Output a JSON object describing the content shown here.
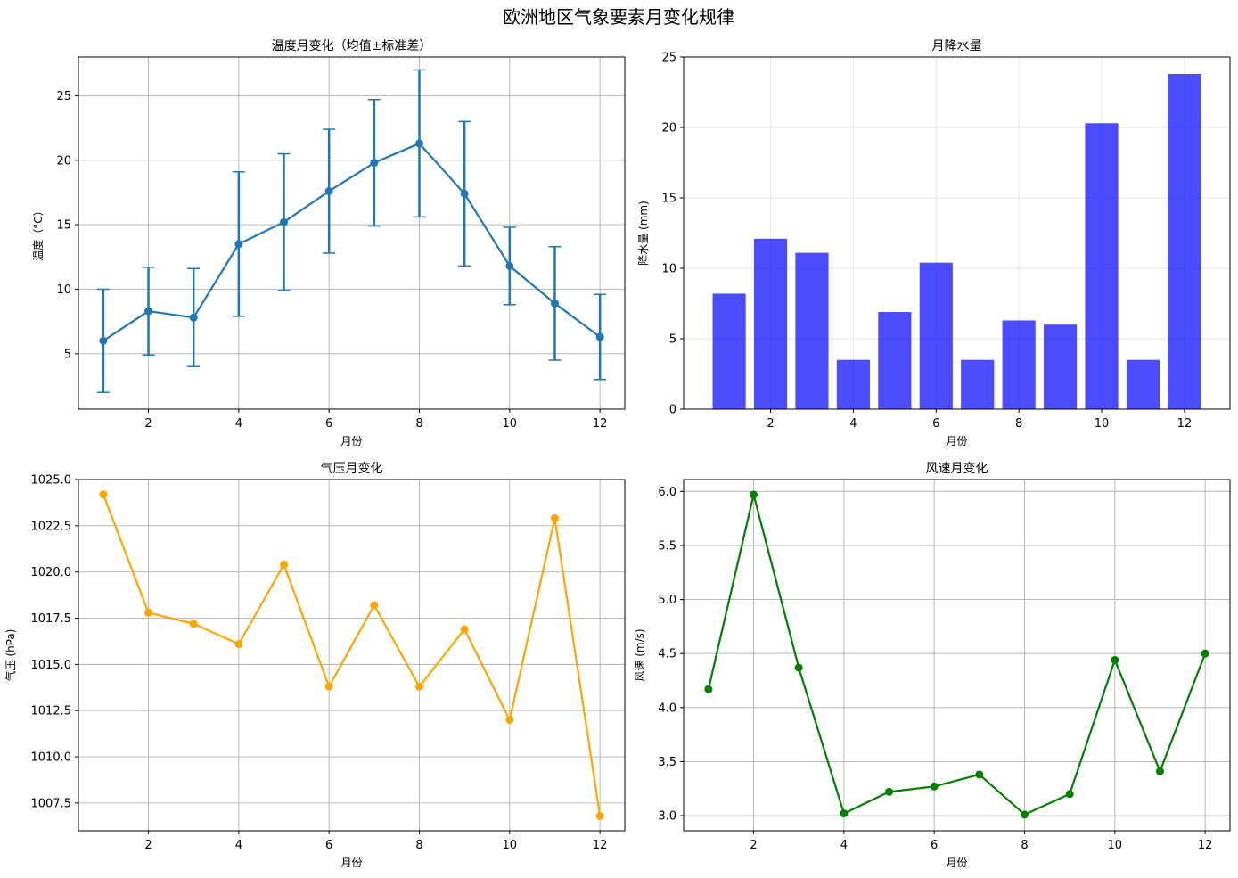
{
  "figure": {
    "title": "欧洲地区气象要素月变化规律"
  },
  "chart_data": [
    {
      "type": "line",
      "title": "温度月变化（均值±标准差）",
      "xlabel": "月份",
      "ylabel": "温度（°C）",
      "x": [
        1,
        2,
        3,
        4,
        5,
        6,
        7,
        8,
        9,
        10,
        11,
        12
      ],
      "y": [
        6.0,
        8.3,
        7.8,
        13.5,
        15.2,
        17.6,
        19.8,
        21.3,
        17.4,
        11.8,
        8.9,
        6.3
      ],
      "error": [
        4.0,
        3.4,
        3.8,
        5.6,
        5.3,
        4.8,
        4.9,
        5.7,
        5.6,
        3.0,
        4.4,
        3.3
      ],
      "xlim": [
        0.45,
        12.55
      ],
      "ylim": [
        0.7,
        28.0
      ],
      "xticks": [
        2,
        4,
        6,
        8,
        10,
        12
      ],
      "yticks": [
        5,
        10,
        15,
        20,
        25
      ],
      "grid": true,
      "color": "#1f77b4"
    },
    {
      "type": "bar",
      "title": "月降水量",
      "xlabel": "月份",
      "ylabel": "降水量 (mm)",
      "x": [
        1,
        2,
        3,
        4,
        5,
        6,
        7,
        8,
        9,
        10,
        11,
        12
      ],
      "y": [
        8.2,
        12.1,
        11.1,
        3.5,
        6.9,
        10.4,
        3.5,
        6.3,
        6.0,
        20.3,
        3.5,
        23.8
      ],
      "xlim": [
        -0.1,
        13.1
      ],
      "ylim": [
        0,
        25
      ],
      "xticks": [
        2,
        4,
        6,
        8,
        10,
        12
      ],
      "yticks": [
        0,
        5,
        10,
        15,
        20,
        25
      ],
      "grid": true,
      "color": "#0000ff"
    },
    {
      "type": "line",
      "title": "气压月变化",
      "xlabel": "月份",
      "ylabel": "气压 (hPa)",
      "x": [
        1,
        2,
        3,
        4,
        5,
        6,
        7,
        8,
        9,
        10,
        11,
        12
      ],
      "y": [
        1024.2,
        1017.8,
        1017.2,
        1016.1,
        1020.4,
        1013.8,
        1018.2,
        1013.8,
        1016.9,
        1012.0,
        1022.9,
        1006.8
      ],
      "xlim": [
        0.45,
        12.55
      ],
      "ylim": [
        1006.0,
        1025.0
      ],
      "xticks": [
        2,
        4,
        6,
        8,
        10,
        12
      ],
      "yticks": [
        1007.5,
        1010.0,
        1012.5,
        1015.0,
        1017.5,
        1020.0,
        1022.5,
        1025.0
      ],
      "ytick_labels": [
        "1007.5",
        "1010.0",
        "1012.5",
        "1015.0",
        "1017.5",
        "1020.0",
        "1022.5",
        "1025.0"
      ],
      "grid": true,
      "color": "#ffa500"
    },
    {
      "type": "line",
      "title": "风速月变化",
      "xlabel": "月份",
      "ylabel": "风速 (m/s)",
      "x": [
        1,
        2,
        3,
        4,
        5,
        6,
        7,
        8,
        9,
        10,
        11,
        12
      ],
      "y": [
        4.17,
        5.97,
        4.37,
        3.02,
        3.22,
        3.27,
        3.38,
        3.01,
        3.2,
        4.44,
        3.41,
        4.5
      ],
      "xlim": [
        0.45,
        12.55
      ],
      "ylim": [
        2.86,
        6.11
      ],
      "xticks": [
        2,
        4,
        6,
        8,
        10,
        12
      ],
      "yticks": [
        3.0,
        3.5,
        4.0,
        4.5,
        5.0,
        5.5,
        6.0
      ],
      "ytick_labels": [
        "3.0",
        "3.5",
        "4.0",
        "4.5",
        "5.0",
        "5.5",
        "6.0"
      ],
      "grid": true,
      "color": "#008000"
    }
  ]
}
